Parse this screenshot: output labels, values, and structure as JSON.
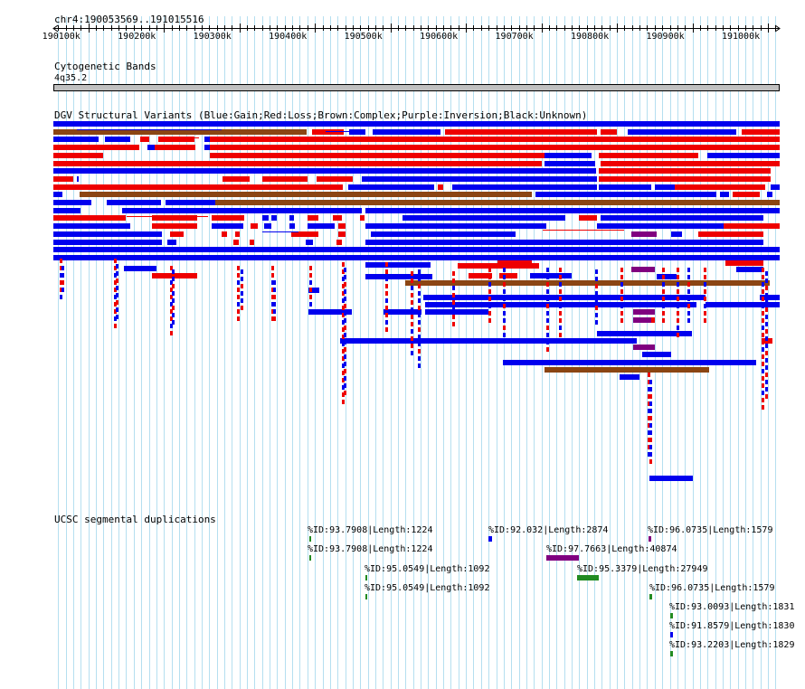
{
  "coords": "chr4:190053569..191015516",
  "ruler": {
    "start": 190053569,
    "end": 191015516,
    "ticks": [
      {
        "label": "190100k",
        "pos": 190100000
      },
      {
        "label": "190200k",
        "pos": 190200000
      },
      {
        "label": "190300k",
        "pos": 190300000
      },
      {
        "label": "190400k",
        "pos": 190400000
      },
      {
        "label": "190500k",
        "pos": 190500000
      },
      {
        "label": "190600k",
        "pos": 190600000
      },
      {
        "label": "190700k",
        "pos": 190700000
      },
      {
        "label": "190800k",
        "pos": 190800000
      },
      {
        "label": "190900k",
        "pos": 190900000
      },
      {
        "label": "191000k",
        "pos": 191000000
      }
    ]
  },
  "tracks": {
    "cytoband": {
      "title": "Cytogenetic Bands",
      "band_label": "4q35.2"
    },
    "dgv": {
      "title": "DGV Structural Variants (Blue:Gain;Red:Loss;Brown:Complex;Purple:Inversion;Black:Unknown)",
      "colors": {
        "gain": "#0000ee",
        "loss": "#ee0000",
        "complex": "#8b4513",
        "inversion": "#800080",
        "unknown": "#000000"
      }
    },
    "segdup": {
      "title": "UCSC segmental duplications",
      "features": [
        {
          "label": "%ID:93.7908|Length:1224",
          "color": "#228b22"
        },
        {
          "label": "%ID:92.032|Length:2874",
          "color": "#0000ee"
        },
        {
          "label": "%ID:96.0735|Length:1579",
          "color": "#800080"
        },
        {
          "label": "%ID:93.7908|Length:1224",
          "color": "#228b22"
        },
        {
          "label": "%ID:97.7663|Length:40874",
          "color": "#800080"
        },
        {
          "label": "%ID:95.0549|Length:1092",
          "color": "#228b22"
        },
        {
          "label": "%ID:95.3379|Length:27949",
          "color": "#228b22"
        },
        {
          "label": "%ID:95.0549|Length:1092",
          "color": "#228b22"
        },
        {
          "label": "%ID:96.0735|Length:1579",
          "color": "#228b22"
        },
        {
          "label": "%ID:93.0093|Length:1831",
          "color": "#228b22"
        },
        {
          "label": "%ID:91.8579|Length:1830",
          "color": "#0000ee"
        },
        {
          "label": "%ID:93.2203|Length:1829",
          "color": "#228b22"
        }
      ]
    }
  }
}
